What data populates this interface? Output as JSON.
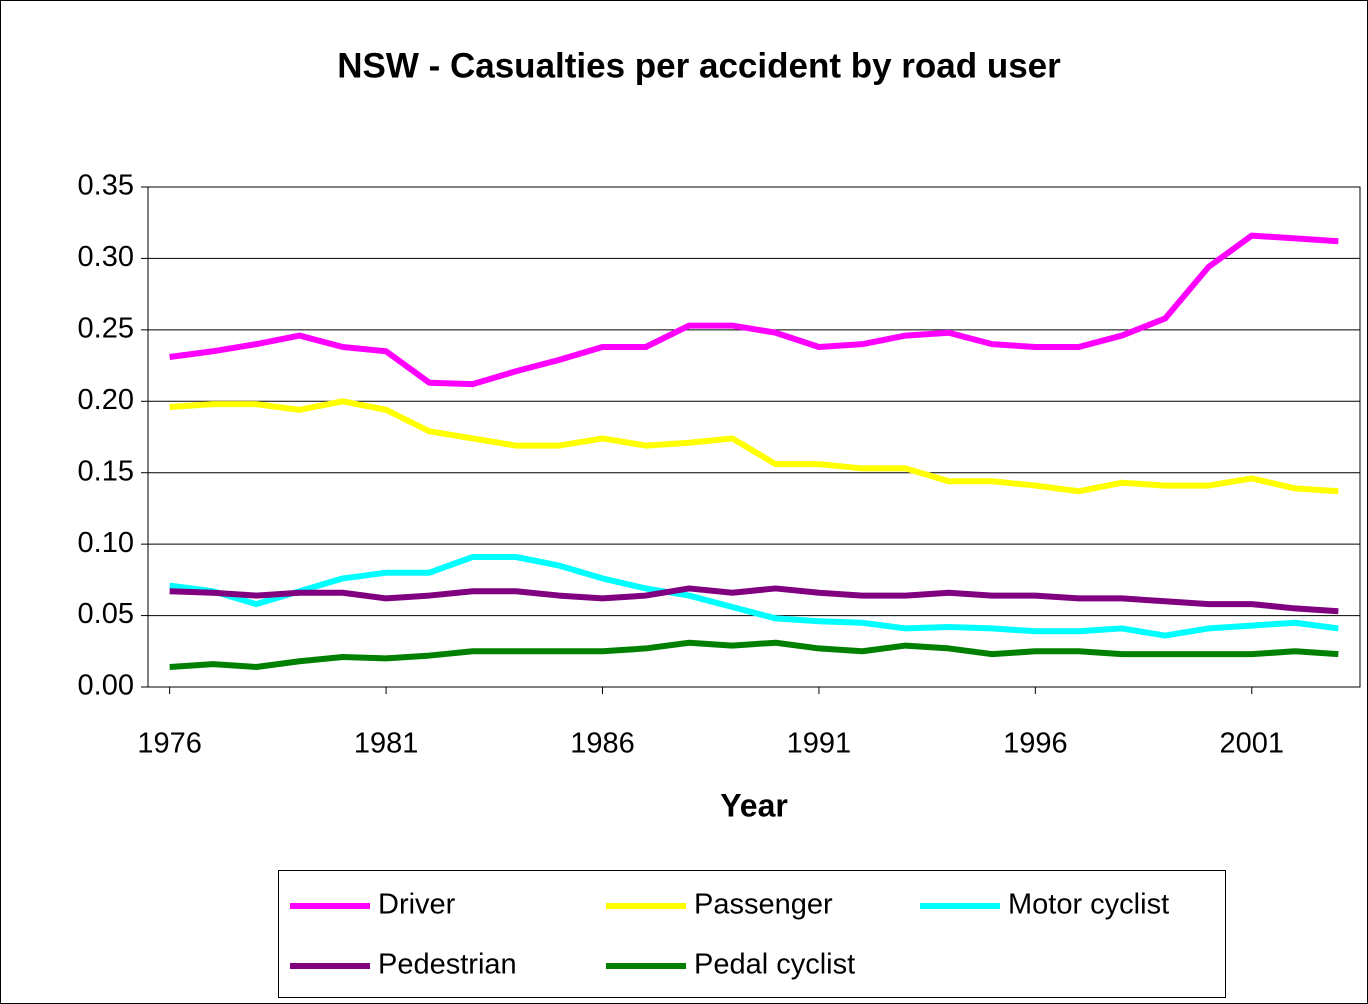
{
  "chart_data": {
    "type": "line",
    "title": "NSW - Casualties per accident by road user",
    "x_label": "Year",
    "x": [
      1976,
      1977,
      1978,
      1979,
      1980,
      1981,
      1982,
      1983,
      1984,
      1985,
      1986,
      1987,
      1988,
      1989,
      1990,
      1991,
      1992,
      1993,
      1994,
      1995,
      1996,
      1997,
      1998,
      1999,
      2000,
      2001,
      2002,
      2003
    ],
    "xlim": [
      1975.5,
      2003.5
    ],
    "xticks": [
      1976,
      1981,
      1986,
      1991,
      1996,
      2001
    ],
    "ylim": [
      0,
      0.35
    ],
    "yticks": [
      {
        "value": 0,
        "label": "0.00"
      },
      {
        "value": 0.05,
        "label": "0.05"
      },
      {
        "value": 0.1,
        "label": "0.10"
      },
      {
        "value": 0.15,
        "label": "0.15"
      },
      {
        "value": 0.2,
        "label": "0.20"
      },
      {
        "value": 0.25,
        "label": "0.25"
      },
      {
        "value": 0.3,
        "label": "0.30"
      },
      {
        "value": 0.35,
        "label": "0.35"
      }
    ],
    "grid": true,
    "legend": "bottom",
    "series": [
      {
        "name": "Driver",
        "color": "#ff00ff",
        "values": [
          0.231,
          0.235,
          0.24,
          0.246,
          0.238,
          0.235,
          0.213,
          0.212,
          0.221,
          0.229,
          0.238,
          0.238,
          0.253,
          0.253,
          0.248,
          0.238,
          0.24,
          0.246,
          0.248,
          0.24,
          0.238,
          0.238,
          0.246,
          0.258,
          0.294,
          0.316,
          0.314,
          0.312
        ]
      },
      {
        "name": "Passenger",
        "color": "#ffff00",
        "values": [
          0.196,
          0.198,
          0.198,
          0.194,
          0.2,
          0.194,
          0.179,
          0.174,
          0.169,
          0.169,
          0.174,
          0.169,
          0.171,
          0.174,
          0.156,
          0.156,
          0.153,
          0.153,
          0.144,
          0.144,
          0.141,
          0.137,
          0.143,
          0.141,
          0.141,
          0.146,
          0.139,
          0.137
        ]
      },
      {
        "name": "Motor cyclist",
        "color": "#00ffff",
        "values": [
          0.071,
          0.067,
          0.058,
          0.067,
          0.076,
          0.08,
          0.08,
          0.091,
          0.091,
          0.085,
          0.076,
          0.069,
          0.064,
          0.056,
          0.048,
          0.046,
          0.045,
          0.041,
          0.042,
          0.041,
          0.039,
          0.039,
          0.041,
          0.036,
          0.041,
          0.043,
          0.045,
          0.041
        ]
      },
      {
        "name": "Pedestrian",
        "color": "#800080",
        "values": [
          0.067,
          0.066,
          0.064,
          0.066,
          0.066,
          0.062,
          0.064,
          0.067,
          0.067,
          0.064,
          0.062,
          0.064,
          0.069,
          0.066,
          0.069,
          0.066,
          0.064,
          0.064,
          0.066,
          0.064,
          0.064,
          0.062,
          0.062,
          0.06,
          0.058,
          0.058,
          0.055,
          0.053
        ]
      },
      {
        "name": "Pedal cyclist",
        "color": "#008000",
        "values": [
          0.014,
          0.016,
          0.014,
          0.018,
          0.021,
          0.02,
          0.022,
          0.025,
          0.025,
          0.025,
          0.025,
          0.027,
          0.031,
          0.029,
          0.031,
          0.027,
          0.025,
          0.029,
          0.027,
          0.023,
          0.025,
          0.025,
          0.023,
          0.023,
          0.023,
          0.023,
          0.025,
          0.023
        ]
      }
    ]
  }
}
